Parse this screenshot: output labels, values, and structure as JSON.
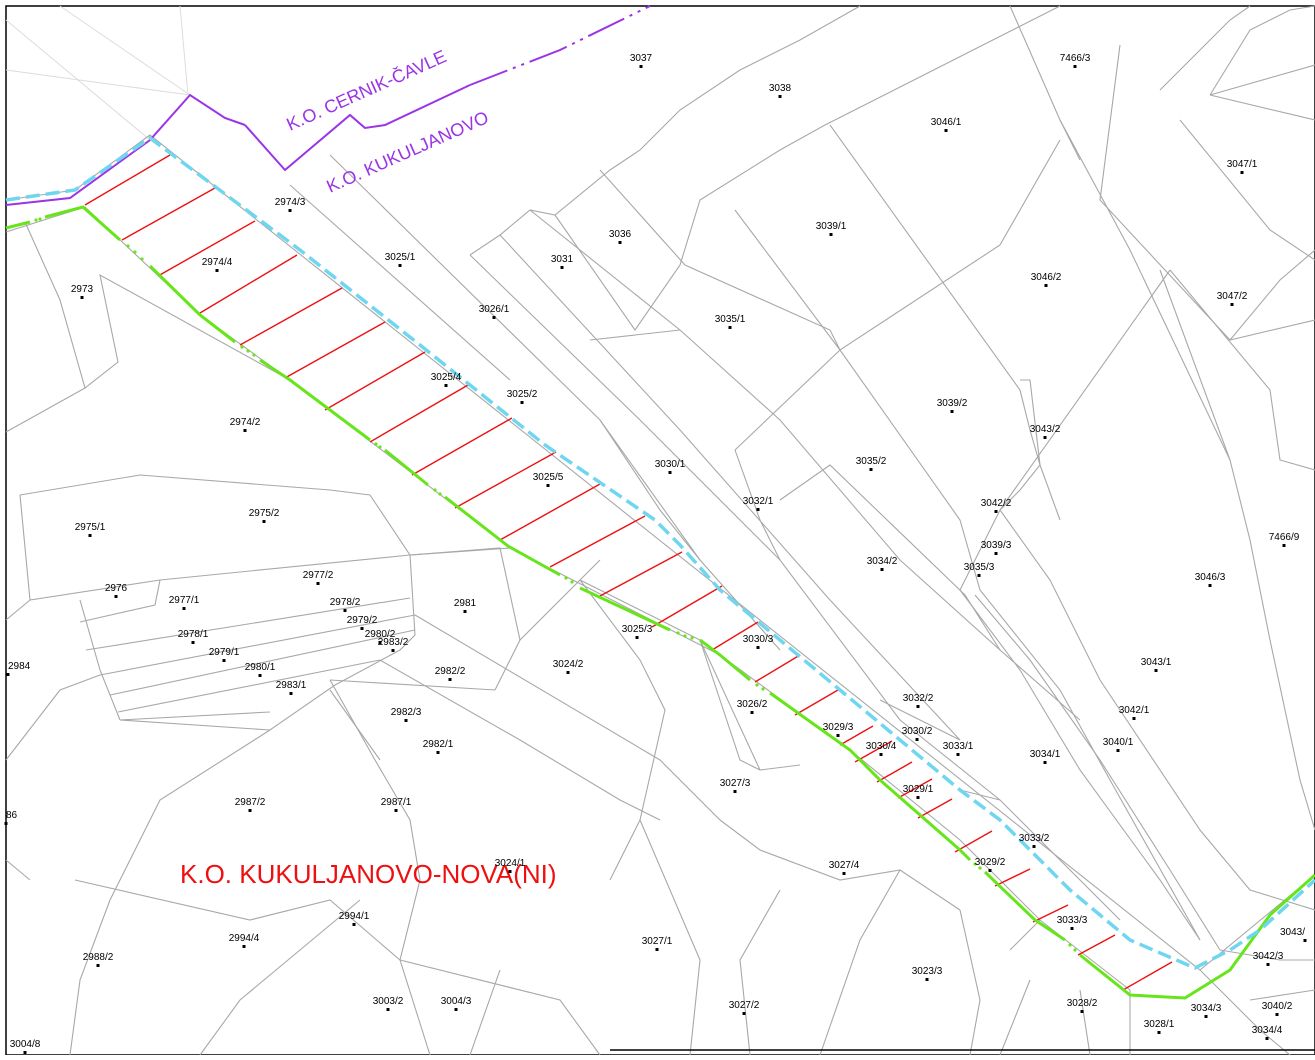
{
  "map": {
    "boundary_labels": {
      "cernik_cavle": "K.O. CERNIK-ČAVLE",
      "kukuljanovo": "K.O. KUKULJANOVO",
      "kukuljanovo_nova": "K.O. KUKULJANOVO-NOVA(NI)"
    },
    "colors": {
      "parcel_lines": "#a8a8a8",
      "municipal_boundary": "#9a34e6",
      "corridor_edge_green": "#66e61a",
      "corridor_edge_cyan": "#6fd6f0",
      "corridor_hatch": "#ee1010"
    },
    "parcels": [
      "3037",
      "3038",
      "7466/3",
      "3046/1",
      "3047/1",
      "2974/3",
      "3036",
      "3039/1",
      "3031",
      "3025/1",
      "2974/4",
      "3046/2",
      "2973",
      "3047/2",
      "3026/1",
      "3035/1",
      "3025/4",
      "3025/2",
      "3039/2",
      "2974/2",
      "3043/2",
      "3030/1",
      "3035/2",
      "3025/5",
      "3032/1",
      "3042/2",
      "2975/1",
      "2975/2",
      "7466/9",
      "3039/3",
      "3034/2",
      "3035/3",
      "3046/3",
      "2977/2",
      "2976",
      "2978/2",
      "2977/1",
      "2981",
      "2979/2",
      "2978/1",
      "2980/2",
      "3025/3",
      "3030/3",
      "2983/2",
      "2979/1",
      "2984",
      "2980/1",
      "3024/2",
      "2982/2",
      "3043/1",
      "2983/1",
      "3032/2",
      "3026/2",
      "3042/1",
      "2982/3",
      "3029/3",
      "3030/2",
      "3033/1",
      "3040/1",
      "2982/1",
      "3030/4",
      "3034/1",
      "3027/3",
      "3029/1",
      "2987/2",
      "2987/1",
      "86",
      "3033/2",
      "3024/1",
      "3029/2",
      "3027/4",
      "2994/1",
      "3033/3",
      "3043/",
      "2994/4",
      "3027/1",
      "2988/2",
      "3042/3",
      "3023/3",
      "3003/2",
      "3004/3",
      "3027/2",
      "3028/2",
      "3034/3",
      "3040/2",
      "3028/1",
      "3034/4",
      "3004/8"
    ]
  }
}
